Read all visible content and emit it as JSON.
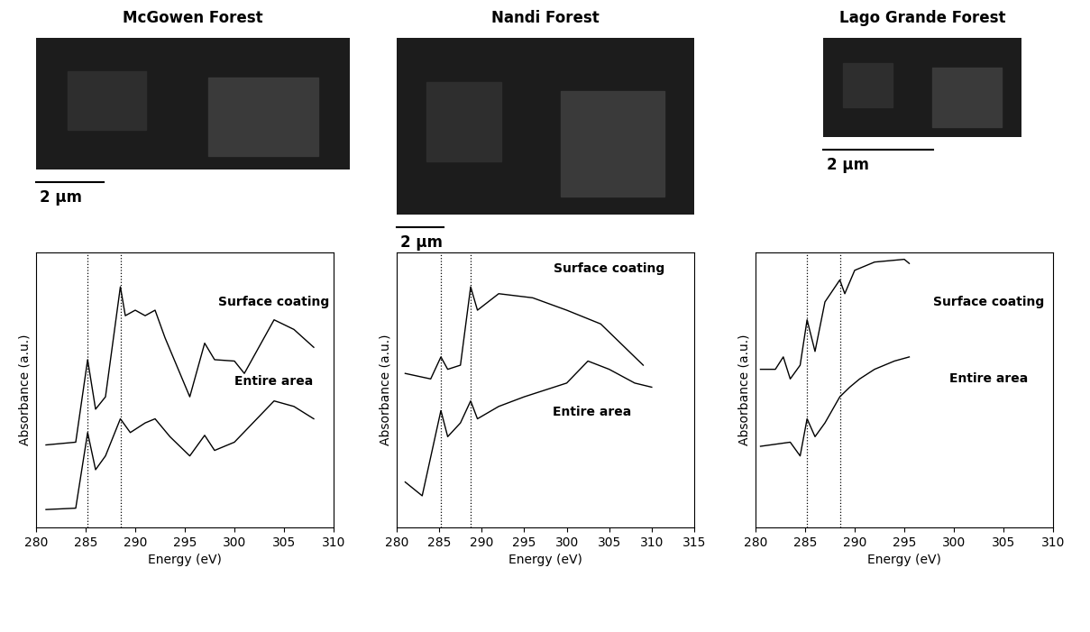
{
  "chart_data": [
    {
      "type": "line",
      "title": "McGowen Forest",
      "scale_bar": "2 µm",
      "x_label": "Energy (eV)",
      "y_label": "Absorbance (a.u.)",
      "xlim": [
        280,
        310
      ],
      "xticks": [
        280,
        285,
        290,
        295,
        300,
        305,
        310
      ],
      "ylim": [
        0,
        10
      ],
      "tick_labels": "x",
      "vlines": [
        285.2,
        288.5
      ],
      "series": [
        {
          "color": "#000000",
          "x": [
            281,
            284,
            285.2,
            286,
            287,
            288.5,
            289,
            290,
            291,
            292,
            293,
            295.5,
            297,
            298,
            300,
            301,
            304,
            306,
            308
          ],
          "values": [
            3.0,
            3.1,
            6.1,
            4.3,
            4.75,
            8.75,
            7.7,
            7.9,
            7.7,
            7.9,
            6.9,
            4.75,
            6.7,
            6.1,
            6.05,
            5.6,
            7.55,
            7.2,
            6.55
          ]
        },
        {
          "color": "#000000",
          "x": [
            281,
            284,
            285.2,
            286,
            287,
            288.5,
            289.5,
            291,
            292,
            293.5,
            295.5,
            297,
            298,
            300,
            304,
            306,
            308
          ],
          "values": [
            0.65,
            0.7,
            3.45,
            2.1,
            2.6,
            3.95,
            3.45,
            3.8,
            3.95,
            3.3,
            2.6,
            3.35,
            2.8,
            3.1,
            4.6,
            4.4,
            3.95
          ]
        }
      ],
      "annotations": [
        {
          "text": "Surface coating",
          "x": 304,
          "y": 8.2
        },
        {
          "text": "Entire area",
          "x": 304,
          "y": 5.3
        }
      ]
    },
    {
      "type": "line",
      "title": "Nandi Forest",
      "scale_bar": "2 µm",
      "x_label": "Energy (eV)",
      "y_label": "Absorbance (a.u.)",
      "xlim": [
        280,
        315
      ],
      "xticks": [
        280,
        285,
        290,
        295,
        300,
        305,
        310,
        315
      ],
      "ylim": [
        0,
        10
      ],
      "tick_labels": "x",
      "vlines": [
        285.2,
        288.7
      ],
      "series": [
        {
          "color": "#000000",
          "x": [
            281,
            284,
            285.2,
            286,
            287.5,
            288.7,
            289.5,
            292,
            296,
            300,
            304,
            308,
            309
          ],
          "values": [
            5.6,
            5.4,
            6.2,
            5.75,
            5.9,
            8.75,
            7.9,
            8.5,
            8.35,
            7.9,
            7.4,
            6.2,
            5.9
          ]
        },
        {
          "color": "#000000",
          "x": [
            281,
            283,
            285.2,
            286,
            287.5,
            288.7,
            289.5,
            292,
            295,
            300,
            302.5,
            305,
            308,
            310
          ],
          "values": [
            1.65,
            1.15,
            4.25,
            3.3,
            3.8,
            4.6,
            3.95,
            4.4,
            4.75,
            5.25,
            6.05,
            5.75,
            5.25,
            5.1
          ]
        }
      ],
      "annotations": [
        {
          "text": "Surface coating",
          "x": 305,
          "y": 9.4
        },
        {
          "text": "Entire area",
          "x": 303,
          "y": 4.2
        }
      ]
    },
    {
      "type": "line",
      "title": "Lago Grande Forest",
      "scale_bar": "2 µm",
      "x_label": "Energy (eV)",
      "y_label": "Absorbance (a.u.)",
      "xlim": [
        280,
        310
      ],
      "xticks": [
        280,
        285,
        290,
        295,
        300,
        305,
        310
      ],
      "ylim": [
        0,
        10
      ],
      "tick_labels": "x",
      "vlines": [
        285.2,
        288.5
      ],
      "series": [
        {
          "color": "#000000",
          "x": [
            280.5,
            282,
            282.8,
            283.5,
            284.5,
            285.2,
            286,
            287,
            288.5,
            289,
            290,
            292,
            295,
            295.5
          ],
          "values": [
            5.75,
            5.75,
            6.2,
            5.4,
            5.9,
            7.55,
            6.4,
            8.2,
            9.0,
            8.5,
            9.35,
            9.65,
            9.75,
            9.6
          ]
        },
        {
          "color": "#000000",
          "x": [
            280.5,
            283.5,
            284.5,
            285.2,
            286,
            287,
            288.5,
            289.5,
            290.5,
            292,
            294,
            295.5
          ],
          "values": [
            2.95,
            3.1,
            2.6,
            3.95,
            3.3,
            3.8,
            4.75,
            5.1,
            5.4,
            5.75,
            6.05,
            6.2
          ]
        }
      ],
      "annotations": [
        {
          "text": "Surface coating",
          "x": 303.5,
          "y": 8.2
        },
        {
          "text": "Entire area",
          "x": 303.5,
          "y": 5.4
        }
      ]
    }
  ]
}
